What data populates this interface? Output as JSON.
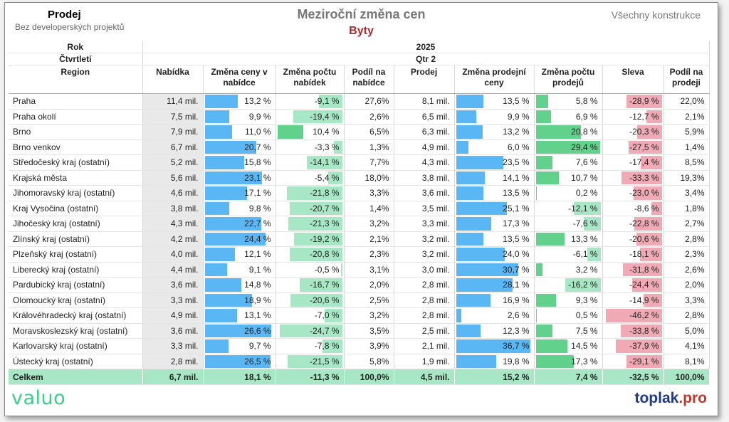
{
  "header": {
    "left_title": "Prodej",
    "left_subtitle": "Bez developerských projektů",
    "title": "Meziroční změna cen",
    "subtitle": "Byty",
    "right_note": "Všechny konstrukce"
  },
  "logos": {
    "left": "valuo",
    "right_main": "toplak",
    "right_tld": ".pro"
  },
  "colors": {
    "blue_bar": "#5ab7f3",
    "green_bar": "#62d18c",
    "light_green_bar": "#a8e7c5",
    "pink_bar": "#f0aab5",
    "total_row": "#a8e7c5",
    "title_red": "#b0262e"
  },
  "table": {
    "year_label": "Rok",
    "year_value": "2025",
    "quarter_label": "Čtvrtletí",
    "quarter_value": "Qtr 2",
    "columns": [
      "Region",
      "Nabídka",
      "Změna ceny v nabídce",
      "Změna počtu nabídek",
      "Podíl na nabídce",
      "Prodej",
      "Změna prodejní ceny",
      "Změna počtu prodejů",
      "Sleva",
      "Podíl na prodeji"
    ],
    "total": {
      "label": "Celkem",
      "supply": "6,7 mil.",
      "price_change_offer": "18,1 %",
      "count_change_offer": "-11,3 %",
      "share_offer": "100,0%",
      "sales": "4,5 mil.",
      "price_change_sale": "15,2 %",
      "count_change_sale": "7,4 %",
      "discount": "-32,5 %",
      "share_sales": "100,0%"
    }
  },
  "chart_data": {
    "type": "table",
    "units": {
      "supply": "mil. Kč",
      "sales": "mil. Kč",
      "price_change_offer": "%",
      "count_change_offer": "%",
      "share_offer": "%",
      "price_change_sale": "%",
      "count_change_sale": "%",
      "discount": "%",
      "share_sales": "%"
    },
    "rows": [
      {
        "region": "Praha",
        "supply": 11.4,
        "price_change_offer": 13.2,
        "count_change_offer": -9.1,
        "share_offer": 27.6,
        "sales": 8.1,
        "price_change_sale": 13.5,
        "count_change_sale": 5.8,
        "discount": -28.9,
        "share_sales": 22.0
      },
      {
        "region": "Praha okolí",
        "supply": 7.5,
        "price_change_offer": 9.9,
        "count_change_offer": -19.4,
        "share_offer": 2.6,
        "sales": 6.5,
        "price_change_sale": 9.9,
        "count_change_sale": 6.9,
        "discount": -12.7,
        "share_sales": 2.1
      },
      {
        "region": "Brno",
        "supply": 7.9,
        "price_change_offer": 11.0,
        "count_change_offer": 10.4,
        "share_offer": 6.5,
        "sales": 6.3,
        "price_change_sale": 13.2,
        "count_change_sale": 20.8,
        "discount": -20.3,
        "share_sales": 5.9
      },
      {
        "region": "Brno venkov",
        "supply": 6.7,
        "price_change_offer": 20.7,
        "count_change_offer": -3.3,
        "share_offer": 1.3,
        "sales": 4.9,
        "price_change_sale": 6.0,
        "count_change_sale": 29.4,
        "discount": -27.5,
        "share_sales": 1.4
      },
      {
        "region": "Středočeský kraj (ostatní)",
        "supply": 5.2,
        "price_change_offer": 15.8,
        "count_change_offer": -14.1,
        "share_offer": 7.7,
        "sales": 4.3,
        "price_change_sale": 23.5,
        "count_change_sale": 7.6,
        "discount": -17.4,
        "share_sales": 8.5
      },
      {
        "region": "Krajská města",
        "supply": 5.6,
        "price_change_offer": 23.1,
        "count_change_offer": -5.4,
        "share_offer": 18.0,
        "sales": 3.8,
        "price_change_sale": 14.1,
        "count_change_sale": 10.7,
        "discount": -33.3,
        "share_sales": 19.3
      },
      {
        "region": "Jihomoravský kraj (ostatní)",
        "supply": 4.6,
        "price_change_offer": 17.1,
        "count_change_offer": -21.8,
        "share_offer": 3.3,
        "sales": 3.6,
        "price_change_sale": 13.5,
        "count_change_sale": 0.2,
        "discount": -23.0,
        "share_sales": 3.4
      },
      {
        "region": "Kraj Vysočina (ostatní)",
        "supply": 3.8,
        "price_change_offer": 9.8,
        "count_change_offer": -20.7,
        "share_offer": 1.4,
        "sales": 3.5,
        "price_change_sale": 25.1,
        "count_change_sale": -12.1,
        "discount": -8.6,
        "share_sales": 1.8
      },
      {
        "region": "Jihočeský kraj (ostatní)",
        "supply": 4.3,
        "price_change_offer": 22.7,
        "count_change_offer": -21.3,
        "share_offer": 3.2,
        "sales": 3.3,
        "price_change_sale": 17.3,
        "count_change_sale": -7.6,
        "discount": -22.8,
        "share_sales": 2.7
      },
      {
        "region": "Zlínský kraj (ostatní)",
        "supply": 4.2,
        "price_change_offer": 24.4,
        "count_change_offer": -19.2,
        "share_offer": 2.1,
        "sales": 3.2,
        "price_change_sale": 13.5,
        "count_change_sale": 13.3,
        "discount": -20.6,
        "share_sales": 2.8
      },
      {
        "region": "Plzeňský kraj (ostatní)",
        "supply": 4.0,
        "price_change_offer": 12.1,
        "count_change_offer": -20.8,
        "share_offer": 2.3,
        "sales": 3.2,
        "price_change_sale": 24.0,
        "count_change_sale": -6.1,
        "discount": -18.1,
        "share_sales": 2.3
      },
      {
        "region": "Liberecký kraj (ostatní)",
        "supply": 4.4,
        "price_change_offer": 9.1,
        "count_change_offer": -0.5,
        "share_offer": 3.1,
        "sales": 3.0,
        "price_change_sale": 30.7,
        "count_change_sale": 3.2,
        "discount": -31.8,
        "share_sales": 2.6
      },
      {
        "region": "Pardubický kraj (ostatní)",
        "supply": 3.6,
        "price_change_offer": 14.8,
        "count_change_offer": -16.7,
        "share_offer": 2.0,
        "sales": 2.8,
        "price_change_sale": 28.1,
        "count_change_sale": -16.2,
        "discount": -24.4,
        "share_sales": 2.0
      },
      {
        "region": "Olomoucký kraj (ostatní)",
        "supply": 3.3,
        "price_change_offer": 18.9,
        "count_change_offer": -20.6,
        "share_offer": 2.5,
        "sales": 2.8,
        "price_change_sale": 16.9,
        "count_change_sale": 9.3,
        "discount": -14.9,
        "share_sales": 3.3
      },
      {
        "region": "Královéhradecký kraj (ostatní)",
        "supply": 4.9,
        "price_change_offer": 13.1,
        "count_change_offer": -7.0,
        "share_offer": 3.2,
        "sales": 2.8,
        "price_change_sale": 2.6,
        "count_change_sale": 0.5,
        "discount": -46.2,
        "share_sales": 2.8
      },
      {
        "region": "Moravskoslezský kraj (ostatní)",
        "supply": 3.6,
        "price_change_offer": 26.6,
        "count_change_offer": -24.7,
        "share_offer": 3.5,
        "sales": 2.5,
        "price_change_sale": 12.3,
        "count_change_sale": 7.5,
        "discount": -33.8,
        "share_sales": 5.0
      },
      {
        "region": "Karlovarský kraj (ostatní)",
        "supply": 3.3,
        "price_change_offer": 9.7,
        "count_change_offer": -7.8,
        "share_offer": 3.9,
        "sales": 2.1,
        "price_change_sale": 36.7,
        "count_change_sale": 14.5,
        "discount": -37.9,
        "share_sales": 4.1
      },
      {
        "region": "Ústecký kraj (ostatní)",
        "supply": 2.8,
        "price_change_offer": 26.5,
        "count_change_offer": -21.5,
        "share_offer": 5.8,
        "sales": 1.9,
        "price_change_sale": 19.8,
        "count_change_sale": 17.3,
        "discount": -29.1,
        "share_sales": 8.1
      }
    ]
  }
}
